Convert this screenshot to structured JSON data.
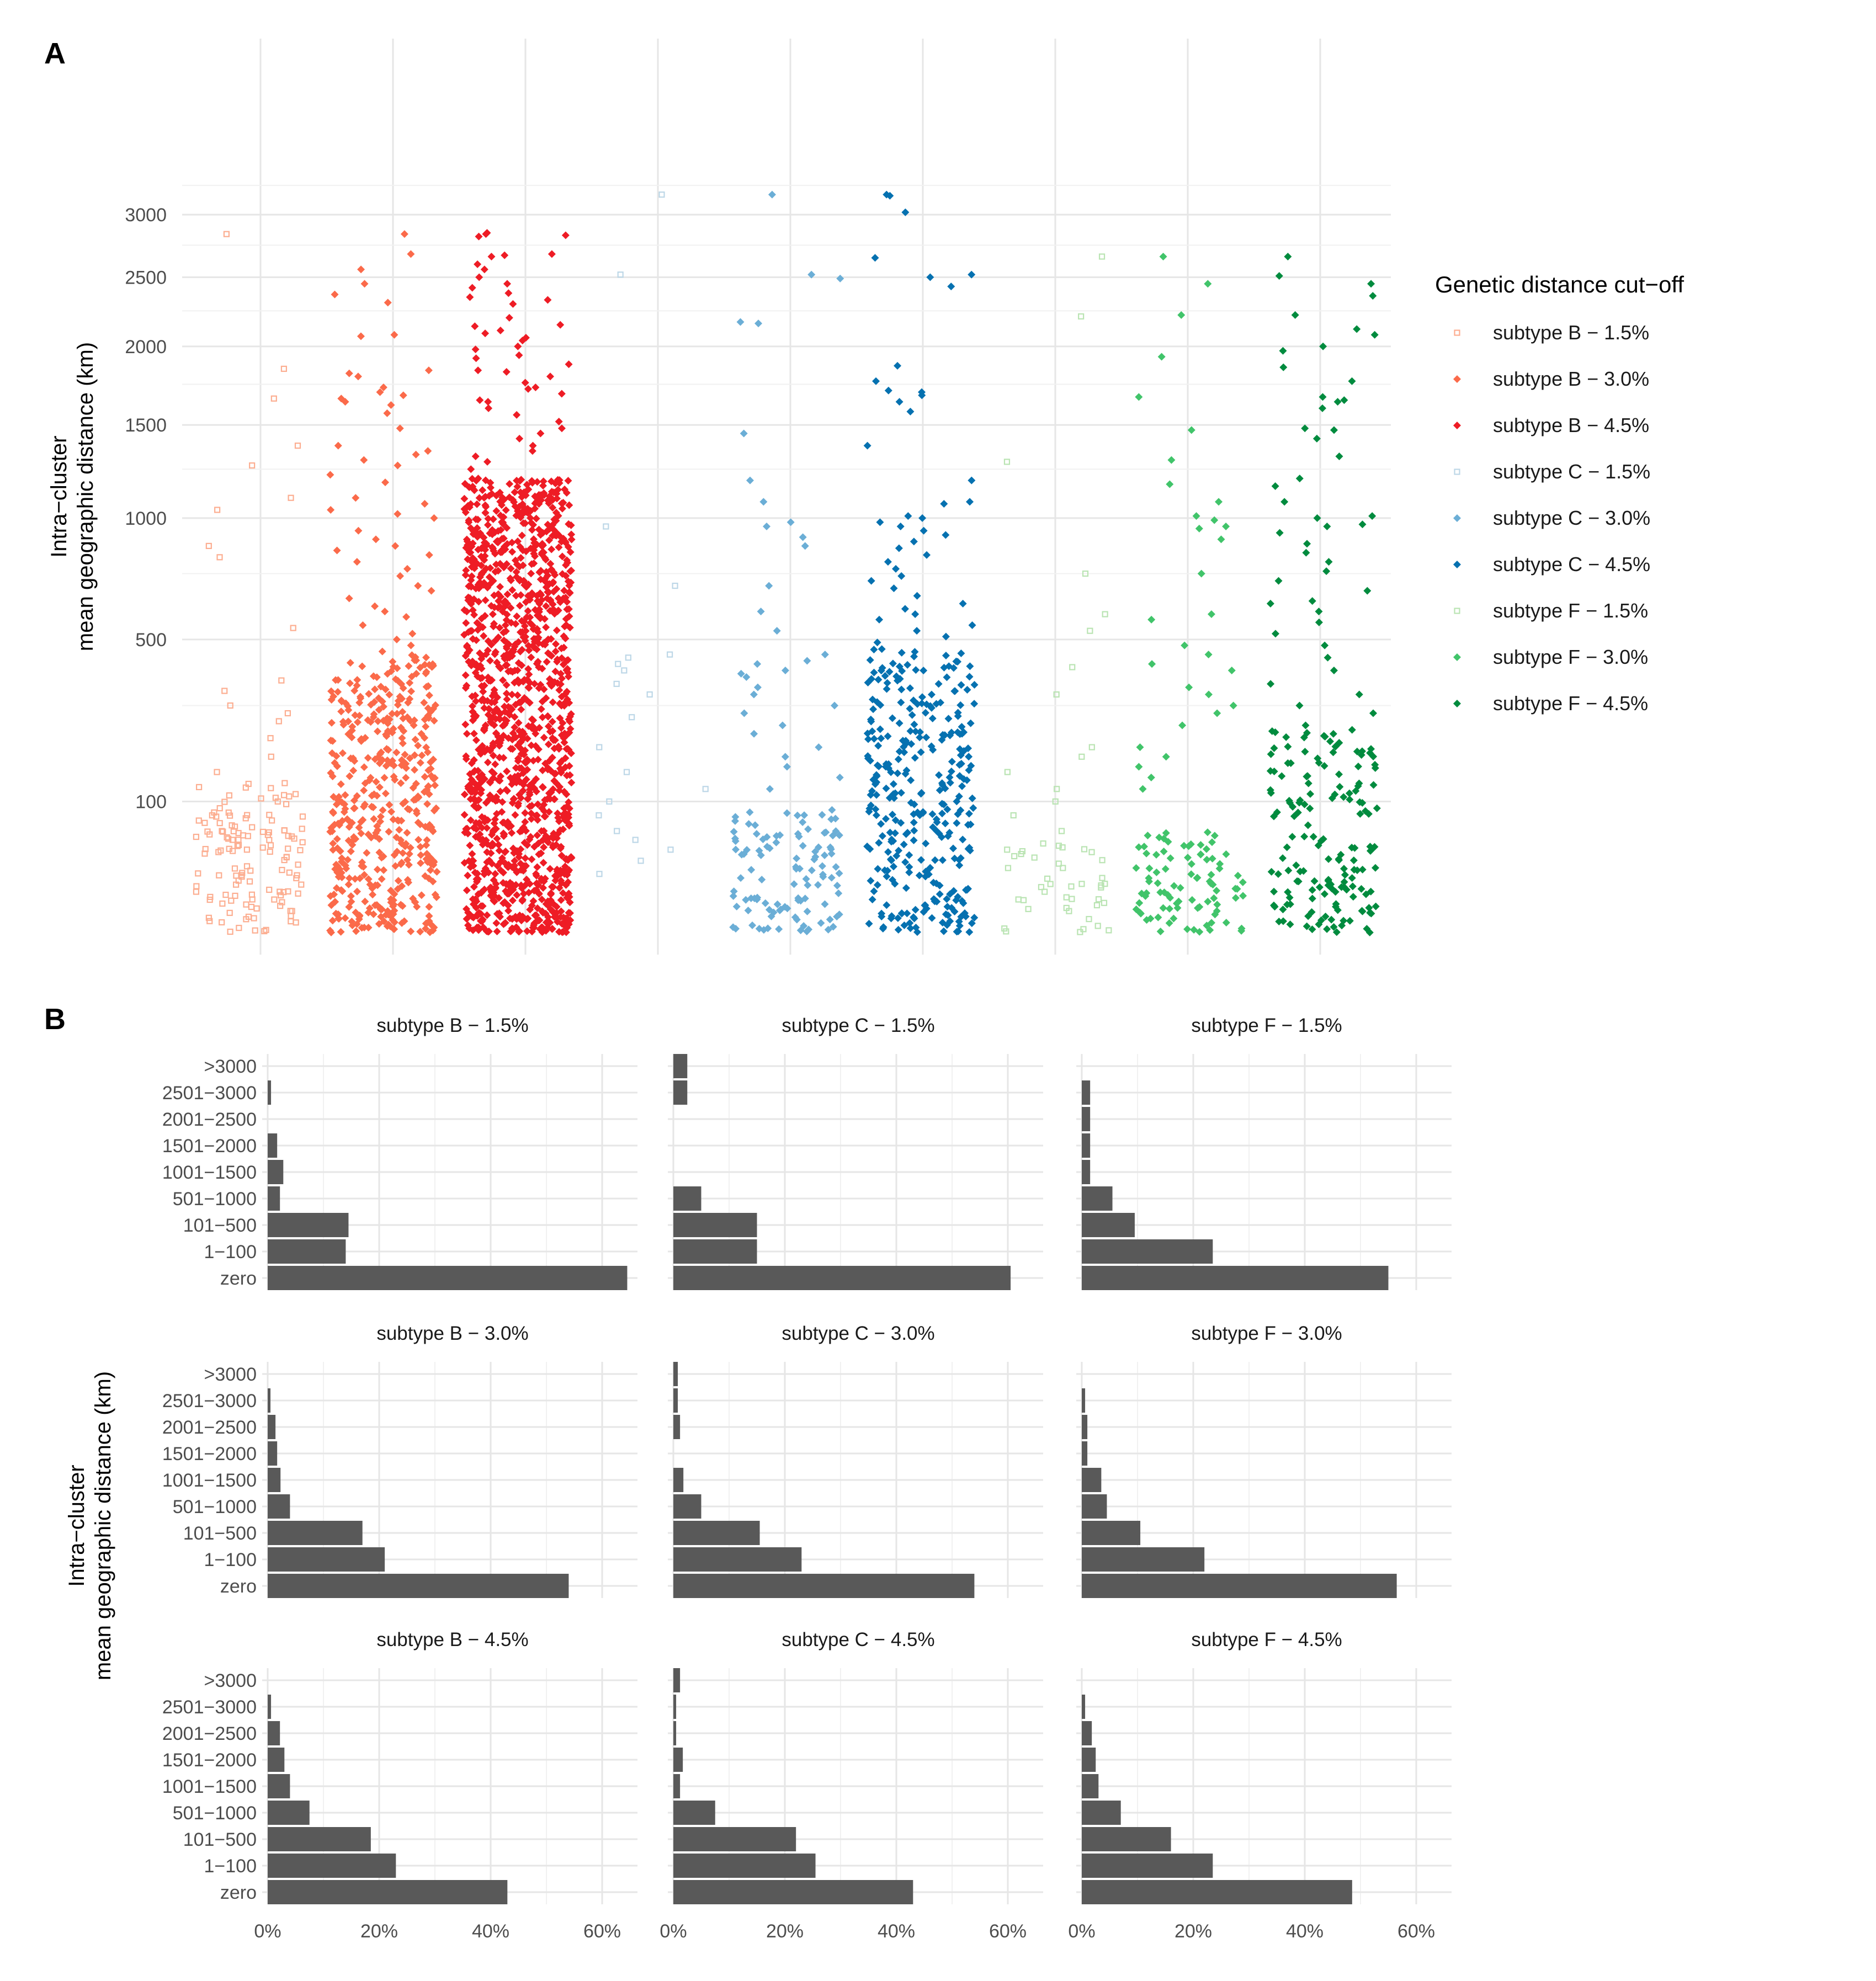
{
  "figure": {
    "panel_a_letter": "A",
    "panel_b_letter": "B"
  },
  "colors": {
    "subtype B - 1.5%": "#fcae91",
    "subtype B - 3.0%": "#fb6a4a",
    "subtype B - 4.5%": "#ee1c25",
    "subtype C - 1.5%": "#bdd7e7",
    "subtype C - 3.0%": "#6baed6",
    "subtype C - 4.5%": "#0571b0",
    "subtype F - 1.5%": "#bae4b3",
    "subtype F - 3.0%": "#41c46a",
    "subtype F - 4.5%": "#008b3e",
    "bar_fill": "#595959"
  },
  "chart_data": [
    {
      "type": "scatter",
      "panel": "A",
      "title": "",
      "xlabel": "",
      "ylabel_lines": [
        "Intra−cluster",
        "mean geographic distance (km)"
      ],
      "y_scale": "sqrt",
      "ylim": [
        0,
        3400
      ],
      "y_ticks": [
        100,
        500,
        1000,
        1500,
        2000,
        2500,
        3000
      ],
      "x_tick_labels_shown": false,
      "grid": true,
      "legend": {
        "title": "Genetic distance cut−off",
        "position": "right",
        "entries": [
          "subtype B − 1.5%",
          "subtype B − 3.0%",
          "subtype B − 4.5%",
          "subtype C − 1.5%",
          "subtype C − 3.0%",
          "subtype C − 4.5%",
          "subtype F − 1.5%",
          "subtype F − 3.0%",
          "subtype F − 4.5%"
        ]
      },
      "series": [
        {
          "name": "subtype B − 1.5%",
          "color_key": "subtype B - 1.5%",
          "marker": "open-square",
          "outliers": [
            2840,
            1850,
            1660,
            1380,
            1270,
            1100,
            1040,
            870,
            820,
            540,
            370,
            340,
            300,
            280,
            260,
            220,
            180,
            150,
            130,
            110,
            100,
            90,
            80,
            70,
            60,
            50,
            40
          ],
          "bulk": {
            "count": 120,
            "max": 130
          }
        },
        {
          "name": "subtype B − 3.0%",
          "color_key": "subtype B - 3.0%",
          "marker": "filled-diamond",
          "outliers": [
            2840,
            2680,
            2560,
            2450,
            2370,
            2310,
            2080,
            2070,
            1840,
            1820,
            1800,
            1730,
            1700,
            1680,
            1660,
            1640,
            1620,
            1570,
            1480,
            1380,
            1350,
            1330,
            1300,
            1270,
            1220,
            1180,
            1100,
            1070,
            1040,
            1020,
            1000,
            940,
            900,
            870,
            850,
            830,
            800,
            770,
            740,
            700,
            680,
            650,
            620,
            600,
            580,
            550,
            520,
            500,
            480,
            460
          ],
          "bulk": {
            "count": 450,
            "max": 450
          }
        },
        {
          "name": "subtype B − 4.5%",
          "color_key": "subtype B - 4.5%",
          "marker": "filled-diamond",
          "outliers": [
            2850,
            2840,
            2830,
            2820,
            2680,
            2670,
            2660,
            2600,
            2560,
            2500,
            2450,
            2420,
            2380,
            2350,
            2330,
            2300,
            2200,
            2150,
            2140,
            2110,
            2090,
            2060,
            2040,
            2000,
            1980,
            1940,
            1920,
            1880,
            1840,
            1830,
            1800,
            1760,
            1730,
            1720,
            1690,
            1650,
            1640,
            1600,
            1560,
            1520,
            1480,
            1450,
            1420,
            1380,
            1350,
            1320,
            1290,
            1250,
            1200
          ],
          "bulk": {
            "count": 1300,
            "max": 1200
          }
        },
        {
          "name": "subtype C − 1.5%",
          "color_key": "subtype C - 1.5%",
          "marker": "open-square",
          "outliers": [
            3170,
            2520,
            960,
            700,
            450,
            440,
            420,
            400,
            360,
            330,
            270,
            200,
            150,
            120,
            100,
            80,
            60,
            50,
            40,
            30,
            20
          ],
          "bulk": {
            "count": 0,
            "max": 0
          }
        },
        {
          "name": "subtype C − 3.0%",
          "color_key": "subtype C - 3.0%",
          "marker": "filled-diamond",
          "outliers": [
            3170,
            2520,
            2490,
            2170,
            2160,
            1450,
            1190,
            1080,
            980,
            960,
            910,
            870,
            700,
            600,
            530,
            450,
            430,
            420,
            400,
            390,
            380,
            350,
            330,
            300,
            280,
            250,
            230,
            200,
            180,
            160,
            140,
            120
          ],
          "bulk": {
            "count": 110,
            "max": 90
          }
        },
        {
          "name": "subtype C − 4.5%",
          "color_key": "subtype C - 4.5%",
          "marker": "filled-diamond",
          "outliers": [
            3170,
            3160,
            3020,
            2650,
            2520,
            2500,
            2430,
            1870,
            1770,
            1710,
            1700,
            1680,
            1640,
            1580,
            1380,
            1190,
            1080,
            1070,
            1010,
            1000,
            980,
            960,
            940,
            920,
            890,
            860,
            830,
            800,
            770,
            740,
            720,
            690,
            660,
            630,
            610,
            590,
            570,
            550,
            530,
            510,
            490
          ],
          "bulk": {
            "count": 320,
            "max": 470
          }
        },
        {
          "name": "subtype F − 1.5%",
          "color_key": "subtype F - 1.5%",
          "marker": "open-square",
          "outliers": [
            2660,
            2210,
            1290,
            750,
            590,
            530,
            410,
            330,
            200,
            180,
            150,
            120,
            100,
            80,
            60,
            40
          ],
          "bulk": {
            "count": 40,
            "max": 50
          }
        },
        {
          "name": "subtype F − 3.0%",
          "color_key": "subtype F - 3.0%",
          "marker": "filled-diamond",
          "outliers": [
            2660,
            2450,
            2220,
            1930,
            1670,
            1470,
            1300,
            1170,
            1080,
            1010,
            990,
            960,
            950,
            900,
            750,
            590,
            570,
            480,
            450,
            420,
            400,
            350,
            330,
            300,
            280,
            250,
            200,
            180,
            160,
            140,
            120
          ],
          "bulk": {
            "count": 90,
            "max": 60
          }
        },
        {
          "name": "subtype F − 4.5%",
          "color_key": "subtype F - 4.5%",
          "marker": "filled-diamond",
          "outliers": [
            2660,
            2510,
            2450,
            2360,
            2220,
            2120,
            2080,
            2000,
            1970,
            1860,
            1770,
            1670,
            1650,
            1640,
            1600,
            1480,
            1470,
            1420,
            1320,
            1200,
            1160,
            1080,
            1010,
            1000,
            970,
            960,
            930,
            880,
            840,
            800,
            760,
            720,
            680,
            640,
            630,
            600,
            560,
            520,
            480,
            440,
            400,
            360,
            330,
            300,
            280,
            250
          ],
          "bulk": {
            "count": 160,
            "max": 240
          }
        }
      ]
    },
    {
      "type": "bar",
      "orientation": "horizontal",
      "panel": "B",
      "ylabel_lines": [
        "Intra−cluster",
        "mean geographic distance (km)"
      ],
      "categories": [
        "zero",
        "1−100",
        "101−500",
        "501−1000",
        "1001−1500",
        "1501−2000",
        "2001−2500",
        "2501−3000",
        ">3000"
      ],
      "x_ticks": [
        "0%",
        "20%",
        "40%",
        "60%"
      ],
      "xlim": [
        0,
        65
      ],
      "grid": true,
      "facets": [
        {
          "title": "subtype B − 1.5%",
          "values": [
            64.5,
            14,
            14.5,
            2.2,
            2.8,
            1.7,
            0,
            0.6,
            0
          ]
        },
        {
          "title": "subtype C − 1.5%",
          "values": [
            60.5,
            15,
            15,
            5,
            0,
            0,
            0,
            2.5,
            2.5
          ]
        },
        {
          "title": "subtype F − 1.5%",
          "values": [
            55,
            23.5,
            9.5,
            5.5,
            1.5,
            1.5,
            1.5,
            1.5,
            0
          ]
        },
        {
          "title": "subtype B − 3.0%",
          "values": [
            54,
            21,
            17,
            4,
            2.3,
            1.7,
            1.4,
            0.5,
            0
          ]
        },
        {
          "title": "subtype C − 3.0%",
          "values": [
            54,
            23,
            15.5,
            5,
            1.8,
            0,
            1.2,
            0.8,
            0.8
          ]
        },
        {
          "title": "subtype F − 3.0%",
          "values": [
            56.5,
            22,
            10.5,
            4.5,
            3.5,
            1,
            1,
            0.6,
            0
          ]
        },
        {
          "title": "subtype B − 4.5%",
          "values": [
            43,
            23,
            18.5,
            7.5,
            4,
            3,
            2.2,
            0.6,
            0
          ]
        },
        {
          "title": "subtype C − 4.5%",
          "values": [
            43,
            25.5,
            22,
            7.5,
            1.2,
            1.7,
            0.5,
            0.5,
            1.2
          ]
        },
        {
          "title": "subtype F − 4.5%",
          "values": [
            48.5,
            23.5,
            16,
            7,
            3,
            2.5,
            1.8,
            0.6,
            0
          ]
        }
      ]
    }
  ]
}
